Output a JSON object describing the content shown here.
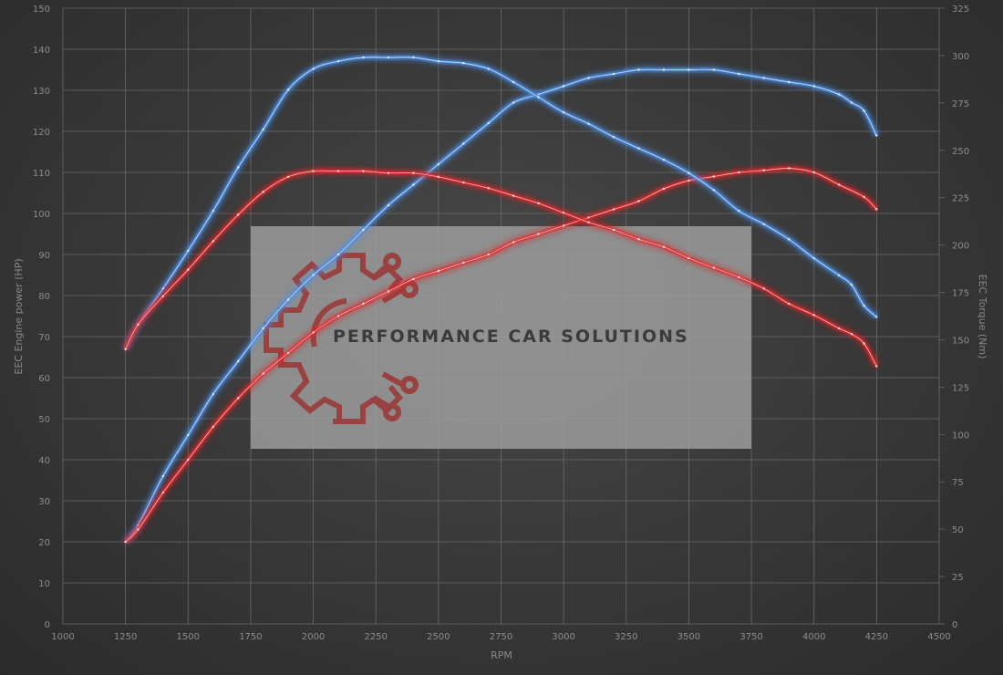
{
  "chart_data": {
    "type": "line",
    "xlabel": "RPM",
    "ylabel_left": "EEC Engine power (HP)",
    "ylabel_right": "EEC Torque (Nm)",
    "xlim": [
      1000,
      4500
    ],
    "ylim_left": [
      0,
      150
    ],
    "ylim_right": [
      0,
      325
    ],
    "x_ticks": [
      "1000",
      "1250",
      "1500",
      "1750",
      "2000",
      "2250",
      "2500",
      "2750",
      "3000",
      "3250",
      "3500",
      "3750",
      "4000",
      "4250",
      "4500"
    ],
    "y_left_ticks": [
      "0",
      "10",
      "20",
      "30",
      "40",
      "50",
      "60",
      "70",
      "80",
      "90",
      "100",
      "110",
      "120",
      "130",
      "140",
      "150"
    ],
    "y_right_ticks": [
      "0",
      "25",
      "50",
      "75",
      "100",
      "125",
      "150",
      "175",
      "200",
      "225",
      "250",
      "275",
      "300",
      "325"
    ],
    "grid": true,
    "watermark": "PERFORMANCE CAR SOLUTIONS",
    "series": [
      {
        "color": "#4d8fe6",
        "axis": "left",
        "x": [
          1250,
          1300,
          1400,
          1500,
          1600,
          1700,
          1800,
          1900,
          2000,
          2100,
          2200,
          2300,
          2400,
          2500,
          2600,
          2700,
          2800,
          2900,
          3000,
          3100,
          3200,
          3300,
          3400,
          3500,
          3600,
          3700,
          3800,
          3900,
          4000,
          4100,
          4150,
          4200,
          4250
        ],
        "y": [
          20,
          24,
          36,
          46,
          56,
          64,
          72,
          79,
          85,
          90,
          96,
          102,
          107,
          112,
          117,
          122,
          127,
          129,
          131,
          133,
          134,
          135,
          135,
          135,
          135,
          134,
          133,
          132,
          131,
          129,
          127,
          125,
          119
        ]
      },
      {
        "color": "#e0282f",
        "axis": "left",
        "x": [
          1250,
          1300,
          1400,
          1500,
          1600,
          1700,
          1800,
          1900,
          2000,
          2100,
          2200,
          2300,
          2400,
          2500,
          2600,
          2700,
          2800,
          2900,
          3000,
          3100,
          3200,
          3300,
          3400,
          3500,
          3600,
          3700,
          3800,
          3900,
          4000,
          4100,
          4200,
          4250
        ],
        "y": [
          20,
          23,
          32,
          40,
          48,
          55,
          61,
          66,
          71,
          75,
          78,
          81,
          84,
          86,
          88,
          90,
          93,
          95,
          97,
          99,
          101,
          103,
          106,
          108,
          109,
          110,
          110.5,
          111,
          110,
          107,
          104,
          101
        ]
      },
      {
        "color": "#4d8fe6",
        "axis": "right",
        "x": [
          1250,
          1300,
          1400,
          1500,
          1600,
          1700,
          1800,
          1900,
          2000,
          2100,
          2200,
          2300,
          2400,
          2500,
          2600,
          2700,
          2800,
          2900,
          3000,
          3100,
          3200,
          3300,
          3400,
          3500,
          3600,
          3700,
          3800,
          3900,
          4000,
          4100,
          4150,
          4200,
          4250
        ],
        "y": [
          145,
          158,
          177,
          197,
          218,
          241,
          261,
          282,
          293,
          297,
          299,
          299,
          299,
          297,
          296,
          293,
          286,
          278,
          270,
          264,
          257,
          251,
          245,
          238,
          229,
          218,
          211,
          203,
          193,
          184,
          179,
          168,
          162
        ]
      },
      {
        "color": "#e0282f",
        "axis": "right",
        "x": [
          1250,
          1300,
          1400,
          1500,
          1600,
          1700,
          1800,
          1900,
          2000,
          2100,
          2200,
          2300,
          2400,
          2500,
          2600,
          2700,
          2800,
          2900,
          3000,
          3100,
          3200,
          3300,
          3400,
          3500,
          3600,
          3700,
          3800,
          3900,
          4000,
          4100,
          4150,
          4200,
          4250
        ],
        "y": [
          145,
          158,
          173,
          187,
          202,
          216,
          228,
          236,
          239,
          239,
          239,
          238,
          238,
          236,
          233,
          230,
          226,
          222,
          217,
          212,
          208,
          203,
          199,
          193,
          188,
          183,
          177,
          169,
          163,
          156,
          153,
          148,
          136
        ]
      }
    ]
  }
}
